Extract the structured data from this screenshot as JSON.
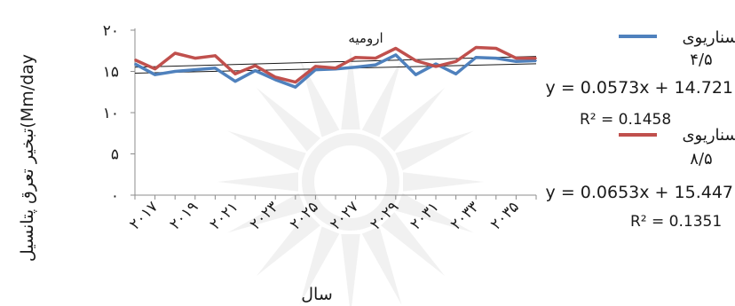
{
  "chart_data": {
    "type": "line",
    "title": "ارومیه",
    "xlabel": "سال",
    "ylabel": "Mm/day)تبخیر تعرق پتانسیل",
    "x": [
      2016,
      2017,
      2018,
      2019,
      2020,
      2021,
      2022,
      2023,
      2024,
      2025,
      2026,
      2027,
      2028,
      2029,
      2030,
      2031,
      2032,
      2033,
      2034,
      2035,
      2036
    ],
    "xtick_values": [
      2017,
      2019,
      2021,
      2023,
      2025,
      2027,
      2029,
      2031,
      2033,
      2035
    ],
    "xtick_labels": [
      "۲۰۱۷",
      "۲۰۱۹",
      "۲۰۲۱",
      "۲۰۲۳",
      "۲۰۲۵",
      "۲۰۲۷",
      "۲۰۲۹",
      "۲۰۳۱",
      "۲۰۳۳",
      "۲۰۳۵"
    ],
    "ylim": [
      0,
      20
    ],
    "ytick_values": [
      0,
      5,
      10,
      15,
      20
    ],
    "ytick_labels": [
      "۰",
      "۵",
      "۱۰",
      "۱۵",
      "۲۰"
    ],
    "series": [
      {
        "name": "سناریوی ۴/۵",
        "color": "#4f81bd",
        "values": [
          15.9,
          14.6,
          15.0,
          15.2,
          15.4,
          13.8,
          15.1,
          14.0,
          13.1,
          15.2,
          15.3,
          15.5,
          15.8,
          17.0,
          14.6,
          15.9,
          14.7,
          16.7,
          16.6,
          16.2,
          16.3
        ],
        "trendline": {
          "equation": "y = 0.0573x + 14.721",
          "r2": "R² = 0.1458",
          "slope": 0.0573,
          "intercept": 14.721
        }
      },
      {
        "name": "سناریوی ۸/۵",
        "color": "#c0504d",
        "values": [
          16.4,
          15.3,
          17.2,
          16.6,
          16.9,
          14.7,
          15.7,
          14.3,
          13.7,
          15.6,
          15.4,
          16.7,
          16.6,
          17.8,
          16.3,
          15.6,
          16.2,
          17.9,
          17.8,
          16.6,
          16.6
        ],
        "trendline": {
          "equation": "y = 0.0653x + 15.447",
          "r2": "R² = 0.1351",
          "slope": 0.0653,
          "intercept": 15.447
        }
      }
    ],
    "grid": false,
    "legend": "right"
  },
  "legend": {
    "s1_label_line1": "سناریوی",
    "s1_label_line2": "۴/۵",
    "s2_label_line1": "سناریوی",
    "s2_label_line2": "۸/۵"
  }
}
